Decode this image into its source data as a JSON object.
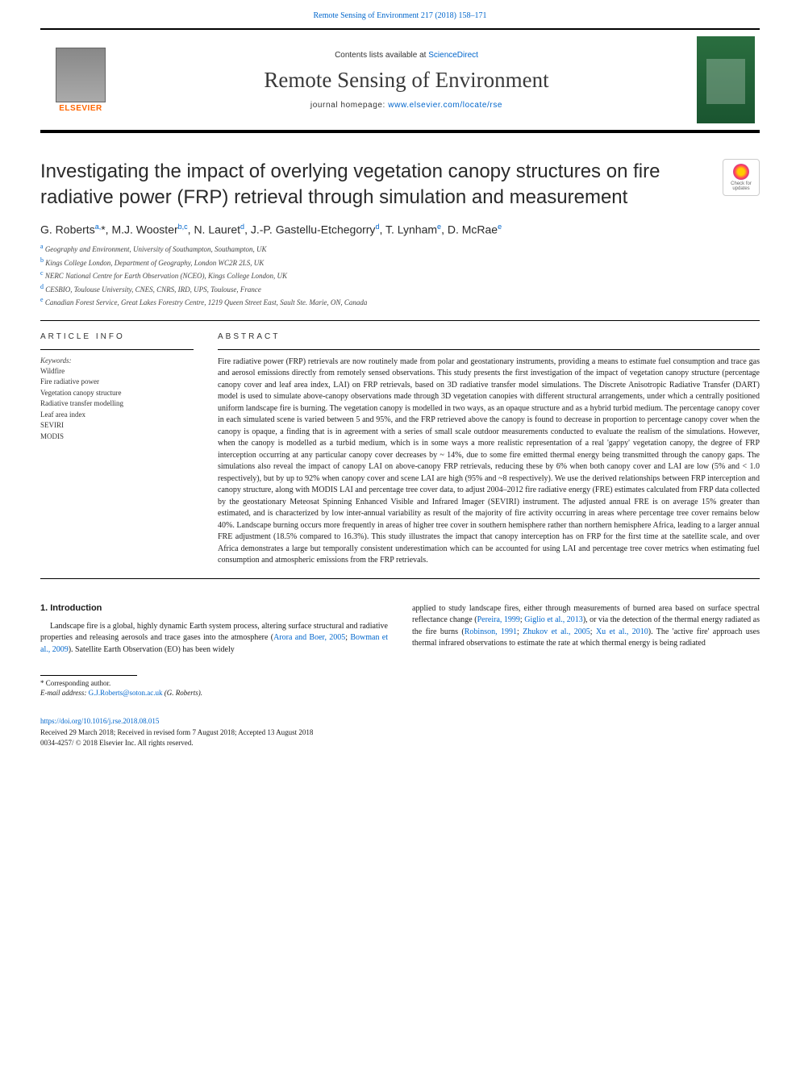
{
  "top_link": "Remote Sensing of Environment 217 (2018) 158–171",
  "header": {
    "contents_prefix": "Contents lists available at ",
    "contents_link": "ScienceDirect",
    "journal_title": "Remote Sensing of Environment",
    "homepage_prefix": "journal homepage: ",
    "homepage_link": "www.elsevier.com/locate/rse",
    "publisher": "ELSEVIER",
    "cover_bg_color": "#2a6e3f"
  },
  "updates_badge": {
    "line1": "Check for",
    "line2": "updates"
  },
  "article": {
    "title": "Investigating the impact of overlying vegetation canopy structures on fire radiative power (FRP) retrieval through simulation and measurement",
    "authors_html": "G. Roberts<sup>a,</sup>*, M.J. Wooster<sup>b,c</sup>, N. Lauret<sup>d</sup>, J.-P. Gastellu-Etchegorry<sup>d</sup>, T. Lynham<sup>e</sup>, D. McRae<sup>e</sup>",
    "affiliations": [
      {
        "sup": "a",
        "text": "Geography and Environment, University of Southampton, Southampton, UK"
      },
      {
        "sup": "b",
        "text": "Kings College London, Department of Geography, London WC2R 2LS, UK"
      },
      {
        "sup": "c",
        "text": "NERC National Centre for Earth Observation (NCEO), Kings College London, UK"
      },
      {
        "sup": "d",
        "text": "CESBIO, Toulouse University, CNES, CNRS, IRD, UPS, Toulouse, France"
      },
      {
        "sup": "e",
        "text": "Canadian Forest Service, Great Lakes Forestry Centre, 1219 Queen Street East, Sault Ste. Marie, ON, Canada"
      }
    ]
  },
  "article_info": {
    "heading": "ARTICLE INFO",
    "kw_label": "Keywords:",
    "keywords": [
      "Wildfire",
      "Fire radiative power",
      "Vegetation canopy structure",
      "Radiative transfer modelling",
      "Leaf area index",
      "SEVIRI",
      "MODIS"
    ]
  },
  "abstract": {
    "heading": "ABSTRACT",
    "text": "Fire radiative power (FRP) retrievals are now routinely made from polar and geostationary instruments, providing a means to estimate fuel consumption and trace gas and aerosol emissions directly from remotely sensed observations. This study presents the first investigation of the impact of vegetation canopy structure (percentage canopy cover and leaf area index, LAI) on FRP retrievals, based on 3D radiative transfer model simulations. The Discrete Anisotropic Radiative Transfer (DART) model is used to simulate above-canopy observations made through 3D vegetation canopies with different structural arrangements, under which a centrally positioned uniform landscape fire is burning. The vegetation canopy is modelled in two ways, as an opaque structure and as a hybrid turbid medium. The percentage canopy cover in each simulated scene is varied between 5 and 95%, and the FRP retrieved above the canopy is found to decrease in proportion to percentage canopy cover when the canopy is opaque, a finding that is in agreement with a series of small scale outdoor measurements conducted to evaluate the realism of the simulations. However, when the canopy is modelled as a turbid medium, which is in some ways a more realistic representation of a real 'gappy' vegetation canopy, the degree of FRP interception occurring at any particular canopy cover decreases by ~ 14%, due to some fire emitted thermal energy being transmitted through the canopy gaps. The simulations also reveal the impact of canopy LAI on above-canopy FRP retrievals, reducing these by 6% when both canopy cover and LAI are low (5% and < 1.0 respectively), but by up to 92% when canopy cover and scene LAI are high (95% and ~8 respectively). We use the derived relationships between FRP interception and canopy structure, along with MODIS LAI and percentage tree cover data, to adjust 2004–2012 fire radiative energy (FRE) estimates calculated from FRP data collected by the geostationary Meteosat Spinning Enhanced Visible and Infrared Imager (SEVIRI) instrument. The adjusted annual FRE is on average 15% greater than estimated, and is characterized by low inter-annual variability as result of the majority of fire activity occurring in areas where percentage tree cover remains below 40%. Landscape burning occurs more frequently in areas of higher tree cover in southern hemisphere rather than northern hemisphere Africa, leading to a larger annual FRE adjustment (18.5% compared to 16.3%). This study illustrates the impact that canopy interception has on FRP for the first time at the satellite scale, and over Africa demonstrates a large but temporally consistent underestimation which can be accounted for using LAI and percentage tree cover metrics when estimating fuel consumption and atmospheric emissions from the FRP retrievals."
  },
  "body": {
    "section_heading": "1. Introduction",
    "left_para": "Landscape fire is a global, highly dynamic Earth system process, altering surface structural and radiative properties and releasing aerosols and trace gases into the atmosphere (",
    "left_cite1": "Arora and Boer, 2005",
    "left_mid": "; ",
    "left_cite2": "Bowman et al., 2009",
    "left_end": "). Satellite Earth Observation (EO) has been widely",
    "right_para1": "applied to study landscape fires, either through measurements of burned area based on surface spectral reflectance change (",
    "right_cite1": "Pereira, 1999",
    "right_mid1": "; ",
    "right_cite2": "Giglio et al., 2013",
    "right_mid2": "), or via the detection of the thermal energy radiated as the fire burns (",
    "right_cite3": "Robinson, 1991",
    "right_mid3": "; ",
    "right_cite4": "Zhukov et al., 2005",
    "right_mid4": "; ",
    "right_cite5": "Xu et al., 2010",
    "right_end": "). The 'active fire' approach uses thermal infrared observations to estimate the rate at which thermal energy is being radiated"
  },
  "footnotes": {
    "corr": "* Corresponding author.",
    "email_label": "E-mail address: ",
    "email": "G.J.Roberts@soton.ac.uk",
    "email_suffix": " (G. Roberts).",
    "doi": "https://doi.org/10.1016/j.rse.2018.08.015",
    "received": "Received 29 March 2018; Received in revised form 7 August 2018; Accepted 13 August 2018",
    "copyright": "0034-4257/ © 2018 Elsevier Inc. All rights reserved."
  },
  "colors": {
    "link": "#0066cc",
    "elsevier_orange": "#ff6600",
    "text": "#1a1a1a"
  }
}
